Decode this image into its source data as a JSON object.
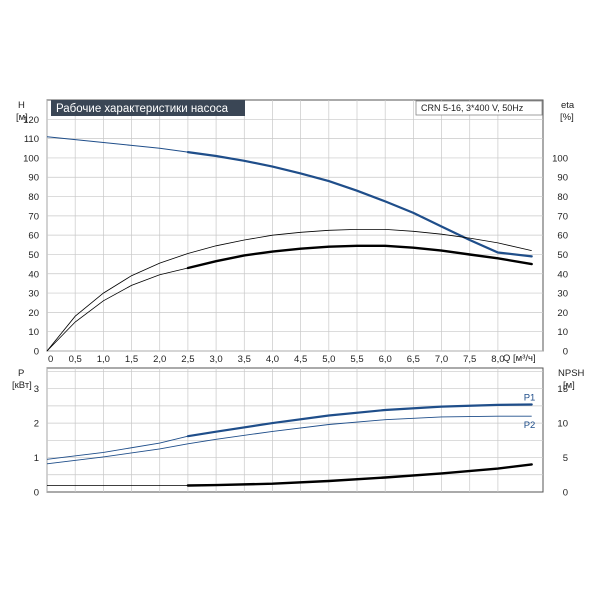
{
  "chart_data": [
    {
      "type": "line",
      "title": "Рабочие характеристики насоса",
      "model_label": "CRN 5-16, 3*400 V, 50Hz",
      "left_axis": {
        "label": "H",
        "unit": "[м]",
        "ylim": [
          0,
          130
        ],
        "ticks": [
          0,
          10,
          20,
          30,
          40,
          50,
          60,
          70,
          80,
          90,
          100,
          110,
          120
        ]
      },
      "right_axis": {
        "label": "eta",
        "unit": "[%]",
        "ylim": [
          0,
          130
        ],
        "ticks": [
          0,
          10,
          20,
          30,
          40,
          50,
          60,
          70,
          80,
          90,
          100
        ]
      },
      "x_axis": {
        "label": "Q [м³/ч]",
        "xlim": [
          0,
          8.8
        ],
        "ticks": [
          "0",
          "0,5",
          "1,0",
          "1,5",
          "2,0",
          "2,5",
          "3,0",
          "3,5",
          "4,0",
          "4,5",
          "5,0",
          "5,5",
          "6,0",
          "6,5",
          "7,0",
          "7,5",
          "8,0"
        ]
      },
      "grid": true,
      "series": [
        {
          "key": "H",
          "axis": "left",
          "color": "#1f4e8a",
          "points": [
            [
              0,
              111
            ],
            [
              0.5,
              109.5
            ],
            [
              1.0,
              108
            ],
            [
              1.5,
              106.5
            ],
            [
              2.0,
              105
            ],
            [
              2.5,
              103
            ],
            [
              3.0,
              101
            ],
            [
              3.5,
              98.5
            ],
            [
              4.0,
              95.5
            ],
            [
              4.5,
              92
            ],
            [
              5.0,
              88
            ],
            [
              5.5,
              83
            ],
            [
              6.0,
              77.5
            ],
            [
              6.5,
              71.5
            ],
            [
              7.0,
              64.5
            ],
            [
              7.5,
              57.5
            ],
            [
              8.0,
              51
            ],
            [
              8.6,
              49
            ]
          ],
          "bold_from": 2.5
        },
        {
          "key": "eta_thin",
          "axis": "right",
          "color": "#000000",
          "points": [
            [
              0,
              0
            ],
            [
              0.5,
              18
            ],
            [
              1.0,
              30
            ],
            [
              1.5,
              39
            ],
            [
              2.0,
              45.5
            ],
            [
              2.5,
              50.5
            ],
            [
              3.0,
              54.5
            ],
            [
              3.5,
              57.5
            ],
            [
              4.0,
              60
            ],
            [
              4.5,
              61.5
            ],
            [
              5.0,
              62.5
            ],
            [
              5.5,
              63
            ],
            [
              6.0,
              63
            ],
            [
              6.5,
              62
            ],
            [
              7.0,
              60.5
            ],
            [
              7.5,
              58.5
            ],
            [
              8.0,
              56
            ],
            [
              8.6,
              52
            ]
          ]
        },
        {
          "key": "eta_bold",
          "axis": "right",
          "color": "#000000",
          "points": [
            [
              0,
              0
            ],
            [
              0.5,
              15
            ],
            [
              1.0,
              26
            ],
            [
              1.5,
              34
            ],
            [
              2.0,
              39.5
            ],
            [
              2.5,
              43
            ],
            [
              3.0,
              46.5
            ],
            [
              3.5,
              49.5
            ],
            [
              4.0,
              51.5
            ],
            [
              4.5,
              53
            ],
            [
              5.0,
              54
            ],
            [
              5.5,
              54.5
            ],
            [
              6.0,
              54.5
            ],
            [
              6.5,
              53.5
            ],
            [
              7.0,
              52
            ],
            [
              7.5,
              50
            ],
            [
              8.0,
              48
            ],
            [
              8.6,
              45
            ]
          ],
          "bold_from": 2.5
        }
      ]
    },
    {
      "type": "line",
      "left_axis": {
        "label": "P",
        "unit": "[кВт]",
        "ylim": [
          0,
          3.6
        ],
        "ticks": [
          0,
          1,
          2,
          3
        ]
      },
      "right_axis": {
        "label": "NPSH",
        "unit": "[м]",
        "ylim": [
          0,
          18
        ],
        "ticks": [
          0,
          5,
          10,
          15
        ]
      },
      "x_axis": {
        "xlim": [
          0,
          8.8
        ]
      },
      "grid": true,
      "series": [
        {
          "key": "P1",
          "name": "P1",
          "axis": "left",
          "color": "#1f4e8a",
          "points": [
            [
              0,
              0.95
            ],
            [
              1.0,
              1.15
            ],
            [
              2.0,
              1.42
            ],
            [
              2.5,
              1.62
            ],
            [
              3.0,
              1.75
            ],
            [
              4.0,
              2.0
            ],
            [
              5.0,
              2.22
            ],
            [
              6.0,
              2.38
            ],
            [
              7.0,
              2.48
            ],
            [
              8.0,
              2.53
            ],
            [
              8.6,
              2.54
            ]
          ],
          "bold_from": 2.5
        },
        {
          "key": "P2",
          "name": "P2",
          "axis": "left",
          "color": "#1f4e8a",
          "points": [
            [
              0,
              0.82
            ],
            [
              1.0,
              1.02
            ],
            [
              2.0,
              1.25
            ],
            [
              2.5,
              1.4
            ],
            [
              3.0,
              1.53
            ],
            [
              4.0,
              1.76
            ],
            [
              5.0,
              1.96
            ],
            [
              6.0,
              2.1
            ],
            [
              7.0,
              2.18
            ],
            [
              8.0,
              2.2
            ],
            [
              8.6,
              2.2
            ]
          ]
        },
        {
          "key": "NPSH",
          "axis": "right",
          "color": "#000000",
          "points": [
            [
              0,
              0.95
            ],
            [
              2.5,
              0.95
            ],
            [
              3.0,
              1.0
            ],
            [
              4.0,
              1.2
            ],
            [
              5.0,
              1.6
            ],
            [
              6.0,
              2.1
            ],
            [
              7.0,
              2.7
            ],
            [
              8.0,
              3.4
            ],
            [
              8.6,
              4.0
            ]
          ],
          "bold_from": 2.5
        }
      ]
    }
  ]
}
